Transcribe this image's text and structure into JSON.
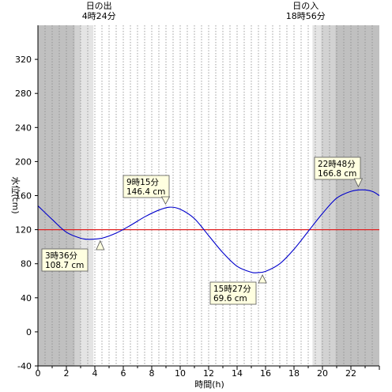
{
  "chart_data": {
    "type": "line",
    "xlabel": "時間(h)",
    "ylabel": "水位(cm)",
    "xlim": [
      0,
      24
    ],
    "ylim": [
      -40,
      360
    ],
    "x_ticks": [
      0,
      2,
      4,
      6,
      8,
      10,
      12,
      14,
      16,
      18,
      20,
      22
    ],
    "y_ticks": [
      -40,
      0,
      40,
      80,
      120,
      160,
      200,
      240,
      280,
      320
    ],
    "grid": "vertical dotted every 0.5h",
    "reference_line": {
      "value": 120,
      "color": "#e02020"
    },
    "series": [
      {
        "color": "#0000cc",
        "x": [
          0,
          1,
          2,
          3,
          3.6,
          4.5,
          5.5,
          6.5,
          7.5,
          8.5,
          9.25,
          10,
          11,
          12,
          13,
          14,
          15,
          15.45,
          16,
          17,
          18,
          19,
          20,
          21,
          22,
          22.8,
          23.5,
          24
        ],
        "y": [
          148,
          132,
          117,
          110,
          108.7,
          110,
          116,
          125,
          135,
          143,
          146.4,
          144,
          133,
          113,
          93,
          77,
          70,
          69.6,
          71,
          80,
          97,
          118,
          139,
          157,
          165,
          166.8,
          165,
          160
        ]
      }
    ],
    "annotations": [
      {
        "x": 3.6,
        "y": 108.7,
        "time": "3時36分",
        "level": "108.7 cm"
      },
      {
        "x": 9.25,
        "y": 146.4,
        "time": "9時15分",
        "level": "146.4 cm"
      },
      {
        "x": 15.45,
        "y": 69.6,
        "time": "15時27分",
        "level": "69.6 cm"
      },
      {
        "x": 22.8,
        "y": 166.8,
        "time": "22時48分",
        "level": "166.8 cm"
      }
    ],
    "sun": {
      "sunrise": {
        "label": "日の出",
        "time": "4時24分",
        "x": 4.4
      },
      "sunset": {
        "label": "日の入",
        "time": "18時56分",
        "x": 18.93
      }
    },
    "shading": {
      "night": [
        [
          0,
          2.6
        ],
        [
          20.9,
          24
        ]
      ],
      "twilight_dark": [
        [
          2.6,
          3.0
        ],
        [
          19.9,
          20.9
        ]
      ],
      "twilight_light": [
        [
          3.0,
          3.9
        ],
        [
          19.3,
          19.9
        ]
      ],
      "colors": {
        "night": "#c0c0c0",
        "twilight_dark": "#d2d2d2",
        "twilight_light": "#e4e4e4"
      }
    }
  }
}
